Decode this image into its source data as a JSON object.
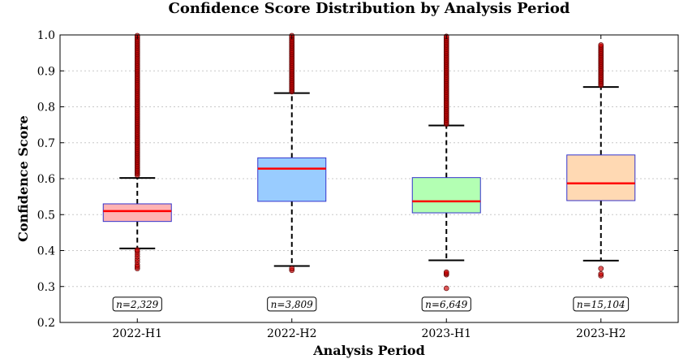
{
  "chart_data": {
    "type": "box",
    "title": "Confidence Score Distribution by Analysis Period",
    "xlabel": "Analysis Period",
    "ylabel": "Confidence Score",
    "ylim": [
      0.2,
      1.0
    ],
    "yticks": [
      "0.2",
      "0.3",
      "0.4",
      "0.5",
      "0.6",
      "0.7",
      "0.8",
      "0.9",
      "1.0"
    ],
    "grid": "horizontal dotted",
    "categories": [
      "2022-H1",
      "2022-H2",
      "2023-H1",
      "2023-H2"
    ],
    "boxes": [
      {
        "category": "2022-H1",
        "color": "#ffb3b3",
        "count_label": "n=2,329",
        "q1": 0.481,
        "median": 0.51,
        "q3": 0.53,
        "whisker_low": 0.406,
        "whisker_high": 0.602,
        "outliers_low": [
          0.35,
          0.355,
          0.36,
          0.368,
          0.375,
          0.383,
          0.39,
          0.397,
          0.402
        ],
        "outliers_high_range": [
          0.61,
          0.998
        ]
      },
      {
        "category": "2022-H2",
        "color": "#99ccff",
        "count_label": "n=3,809",
        "q1": 0.537,
        "median": 0.628,
        "q3": 0.658,
        "whisker_low": 0.357,
        "whisker_high": 0.838,
        "outliers_low": [
          0.345,
          0.35
        ],
        "outliers_high_range": [
          0.842,
          0.998
        ]
      },
      {
        "category": "2023-H1",
        "color": "#b3ffb3",
        "count_label": "n=6,649",
        "q1": 0.505,
        "median": 0.537,
        "q3": 0.603,
        "whisker_low": 0.373,
        "whisker_high": 0.748,
        "outliers_low": [
          0.295,
          0.333,
          0.336,
          0.34
        ],
        "outliers_high_range": [
          0.752,
          0.998
        ]
      },
      {
        "category": "2023-H2",
        "color": "#ffd9b3",
        "count_label": "n=15,104",
        "q1": 0.539,
        "median": 0.587,
        "q3": 0.666,
        "whisker_low": 0.372,
        "whisker_high": 0.855,
        "outliers_low": [
          0.33,
          0.335,
          0.35
        ],
        "outliers_high_range": [
          0.86,
          0.974
        ]
      }
    ],
    "median_color": "#ff0000",
    "box_edge_color": "#3333cc",
    "outlier_color": "#cc0000"
  }
}
